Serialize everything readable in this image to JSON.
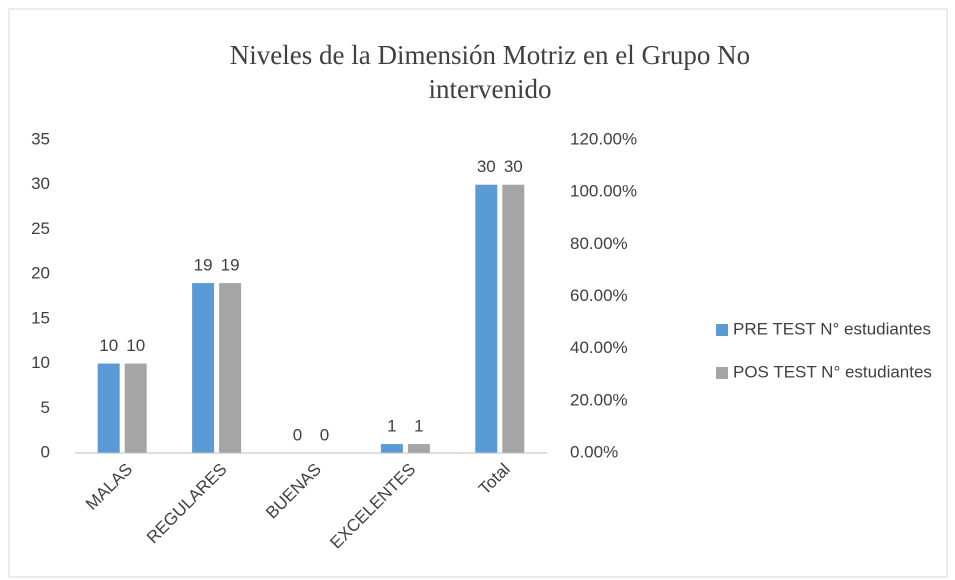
{
  "chart_data": {
    "type": "bar",
    "title": "Niveles de la Dimensión Motriz en el Grupo No intervenido",
    "categories": [
      "MALAS",
      "REGULARES",
      "BUENAS",
      "EXCELENTES",
      "Total"
    ],
    "series": [
      {
        "name": "PRE TEST N° estudiantes",
        "color": "#5b9bd5",
        "values": [
          10,
          19,
          0,
          1,
          30
        ]
      },
      {
        "name": "POS TEST N° estudiantes",
        "color": "#a5a5a5",
        "values": [
          10,
          19,
          0,
          1,
          30
        ]
      }
    ],
    "ylim": [
      0,
      35
    ],
    "yticks": [
      0,
      5,
      10,
      15,
      20,
      25,
      30,
      35
    ],
    "y2lim": [
      0,
      120
    ],
    "y2ticks": [
      {
        "value": 0,
        "label": "0.00%"
      },
      {
        "value": 20,
        "label": "20.00%"
      },
      {
        "value": 40,
        "label": "40.00%"
      },
      {
        "value": 60,
        "label": "60.00%"
      },
      {
        "value": 80,
        "label": "80.00%"
      },
      {
        "value": 100,
        "label": "100.00%"
      },
      {
        "value": 120,
        "label": "120.00%"
      }
    ],
    "grid": false,
    "legend": "right"
  }
}
